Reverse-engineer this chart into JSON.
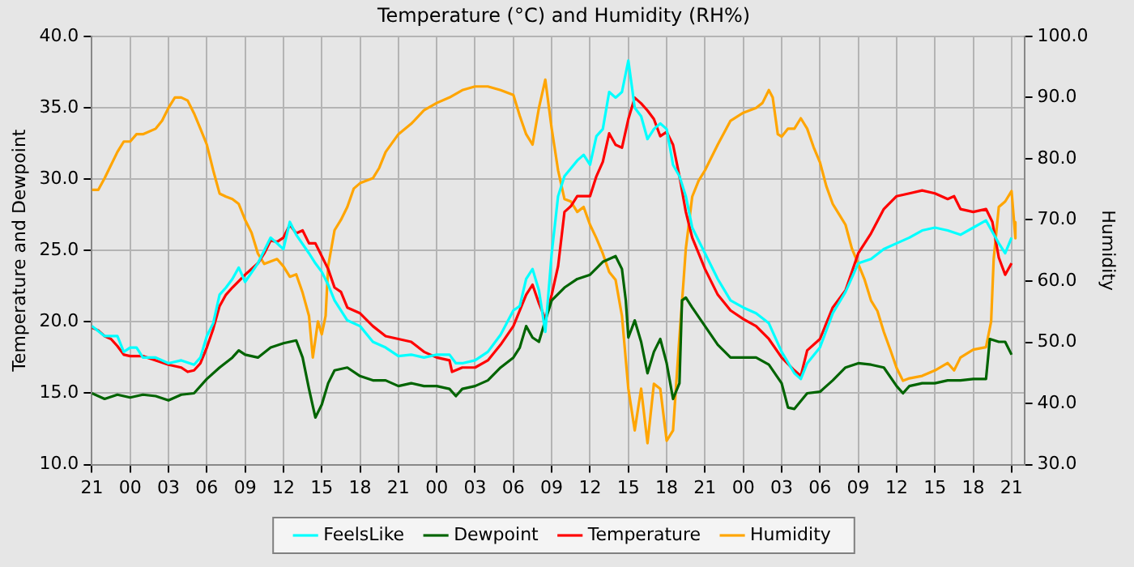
{
  "chart_data": {
    "type": "line",
    "title": "Temperature (°C) and Humidity (RH%)",
    "ylabel": "Temperature and Dewpoint",
    "y2label": "Humidity",
    "xlim": [
      "--01-01T21:00",
      "--01-04T22:00"
    ],
    "xticks": [
      {
        "value": "--01-01T21:00",
        "label": "21"
      },
      {
        "value": "--01-02T00:00",
        "label": "00"
      },
      {
        "value": "--01-02T03:00",
        "label": "03"
      },
      {
        "value": "--01-02T06:00",
        "label": "06"
      },
      {
        "value": "--01-02T09:00",
        "label": "09"
      },
      {
        "value": "--01-02T12:00",
        "label": "12"
      },
      {
        "value": "--01-02T15:00",
        "label": "15"
      },
      {
        "value": "--01-02T18:00",
        "label": "18"
      },
      {
        "value": "--01-02T21:00",
        "label": "21"
      },
      {
        "value": "--01-03T00:00",
        "label": "00"
      },
      {
        "value": "--01-03T03:00",
        "label": "03"
      },
      {
        "value": "--01-03T06:00",
        "label": "06"
      },
      {
        "value": "--01-03T09:00",
        "label": "09"
      },
      {
        "value": "--01-03T12:00",
        "label": "12"
      },
      {
        "value": "--01-03T15:00",
        "label": "15"
      },
      {
        "value": "--01-03T18:00",
        "label": "18"
      },
      {
        "value": "--01-03T21:00",
        "label": "21"
      },
      {
        "value": "--01-04T00:00",
        "label": "00"
      },
      {
        "value": "--01-04T03:00",
        "label": "03"
      },
      {
        "value": "--01-04T06:00",
        "label": "06"
      },
      {
        "value": "--01-04T09:00",
        "label": "09"
      },
      {
        "value": "--01-04T12:00",
        "label": "12"
      },
      {
        "value": "--01-04T15:00",
        "label": "15"
      },
      {
        "value": "--01-04T18:00",
        "label": "18"
      },
      {
        "value": "--01-04T21:00",
        "label": "21"
      }
    ],
    "ylim": [
      10,
      40
    ],
    "yticks": [
      {
        "value": 10,
        "label": "10.0"
      },
      {
        "value": 15,
        "label": "15.0"
      },
      {
        "value": 20,
        "label": "20.0"
      },
      {
        "value": 25,
        "label": "25.0"
      },
      {
        "value": 30,
        "label": "30.0"
      },
      {
        "value": 35,
        "label": "35.0"
      },
      {
        "value": 40,
        "label": "40.0"
      }
    ],
    "y2lim": [
      30,
      100
    ],
    "y2ticks": [
      {
        "value": 30,
        "label": "30.0"
      },
      {
        "value": 40,
        "label": "40.0"
      },
      {
        "value": 50,
        "label": "50.0"
      },
      {
        "value": 60,
        "label": "60.0"
      },
      {
        "value": 70,
        "label": "70.0"
      },
      {
        "value": 80,
        "label": "80.0"
      },
      {
        "value": 90,
        "label": "90.0"
      },
      {
        "value": 100,
        "label": "100.0"
      }
    ],
    "grid": true,
    "legend": "bottom",
    "marker": "none",
    "line_style": "solid",
    "series": [
      {
        "name": "FeelsLike",
        "color": "#00ffff",
        "x": [
          "--01-01T21:00",
          "--01-01T22:00",
          "--01-01T23:00",
          "--01-01T23:30",
          "--01-02T00:00",
          "--01-02T00:30",
          "--01-02T01:00",
          "--01-02T02:00",
          "--01-02T03:00",
          "--01-02T04:00",
          "--01-02T05:00",
          "--01-02T05:30",
          "--01-02T06:00",
          "--01-02T06:30",
          "--01-02T07:00",
          "--01-02T07:30",
          "--01-02T08:00",
          "--01-02T08:30",
          "--01-02T09:00",
          "--01-02T10:00",
          "--01-02T11:00",
          "--01-02T12:00",
          "--01-02T12:30",
          "--01-02T13:00",
          "--01-02T14:00",
          "--01-02T14:30",
          "--01-02T15:00",
          "--01-02T15:30",
          "--01-02T16:00",
          "--01-02T17:00",
          "--01-02T18:00",
          "--01-02T19:00",
          "--01-02T20:00",
          "--01-02T21:00",
          "--01-02T22:00",
          "--01-02T23:00",
          "--01-03T00:00",
          "--01-03T01:00",
          "--01-03T01:30",
          "--01-03T02:00",
          "--01-03T03:00",
          "--01-03T04:00",
          "--01-03T05:00",
          "--01-03T06:00",
          "--01-03T06:30",
          "--01-03T07:00",
          "--01-03T07:30",
          "--01-03T08:00",
          "--01-03T08:30",
          "--01-03T09:00",
          "--01-03T09:30",
          "--01-03T10:00",
          "--01-03T11:00",
          "--01-03T11:30",
          "--01-03T12:00",
          "--01-03T12:30",
          "--01-03T13:00",
          "--01-03T13:30",
          "--01-03T14:00",
          "--01-03T14:30",
          "--01-03T15:00",
          "--01-03T15:30",
          "--01-03T16:00",
          "--01-03T16:30",
          "--01-03T17:00",
          "--01-03T17:30",
          "--01-03T18:00",
          "--01-03T18:30",
          "--01-03T19:00",
          "--01-03T19:30",
          "--01-03T20:00",
          "--01-03T21:00",
          "--01-03T22:00",
          "--01-03T23:00",
          "--01-04T00:00",
          "--01-04T01:00",
          "--01-04T02:00",
          "--01-04T03:00",
          "--01-04T04:00",
          "--01-04T04:30",
          "--01-04T05:00",
          "--01-04T06:00",
          "--01-04T07:00",
          "--01-04T08:00",
          "--01-04T09:00",
          "--01-04T10:00",
          "--01-04T11:00",
          "--01-04T12:00",
          "--01-04T13:00",
          "--01-04T14:00",
          "--01-04T15:00",
          "--01-04T16:00",
          "--01-04T17:00",
          "--01-04T18:00",
          "--01-04T19:00",
          "--01-04T20:00",
          "--01-04T20:30",
          "--01-04T21:00"
        ],
        "values": [
          19.7,
          19.0,
          19.0,
          17.9,
          18.2,
          18.2,
          17.5,
          17.5,
          17.1,
          17.3,
          17.0,
          17.5,
          19.0,
          19.9,
          21.9,
          22.4,
          23.0,
          23.8,
          22.8,
          24.1,
          25.9,
          25.1,
          27.0,
          26.1,
          24.8,
          24.1,
          23.5,
          22.6,
          21.5,
          20.1,
          19.7,
          18.6,
          18.2,
          17.6,
          17.7,
          17.5,
          17.7,
          17.7,
          17.1,
          17.1,
          17.3,
          17.9,
          19.1,
          20.8,
          21.1,
          23.0,
          23.7,
          22.2,
          19.3,
          24.8,
          28.8,
          30.2,
          31.3,
          31.7,
          31.0,
          33.0,
          33.5,
          36.1,
          35.7,
          36.1,
          38.3,
          35.0,
          34.4,
          32.8,
          33.5,
          33.9,
          33.5,
          31.0,
          30.2,
          28.8,
          26.6,
          24.8,
          23.0,
          21.5,
          21.0,
          20.6,
          19.9,
          17.9,
          16.4,
          16.0,
          17.1,
          18.2,
          20.6,
          22.1,
          24.1,
          24.4,
          25.1,
          25.5,
          25.9,
          26.4,
          26.6,
          26.4,
          26.1,
          26.6,
          27.1,
          25.5,
          24.8,
          25.9
        ]
      },
      {
        "name": "Dewpoint",
        "color": "#006400",
        "x": [
          "--01-01T21:00",
          "--01-01T22:00",
          "--01-01T23:00",
          "--01-02T00:00",
          "--01-02T01:00",
          "--01-02T02:00",
          "--01-02T03:00",
          "--01-02T04:00",
          "--01-02T05:00",
          "--01-02T06:00",
          "--01-02T07:00",
          "--01-02T08:00",
          "--01-02T08:30",
          "--01-02T09:00",
          "--01-02T10:00",
          "--01-02T11:00",
          "--01-02T12:00",
          "--01-02T13:00",
          "--01-02T13:30",
          "--01-02T14:00",
          "--01-02T14:30",
          "--01-02T15:00",
          "--01-02T15:30",
          "--01-02T16:00",
          "--01-02T17:00",
          "--01-02T18:00",
          "--01-02T19:00",
          "--01-02T20:00",
          "--01-02T21:00",
          "--01-02T22:00",
          "--01-02T23:00",
          "--01-03T00:00",
          "--01-03T01:00",
          "--01-03T01:30",
          "--01-03T02:00",
          "--01-03T03:00",
          "--01-03T04:00",
          "--01-03T05:00",
          "--01-03T06:00",
          "--01-03T06:30",
          "--01-03T07:00",
          "--01-03T07:30",
          "--01-03T08:00",
          "--01-03T08:30",
          "--01-03T09:00",
          "--01-03T10:00",
          "--01-03T11:00",
          "--01-03T12:00",
          "--01-03T13:00",
          "--01-03T14:00",
          "--01-03T14:30",
          "--01-03T14:48",
          "--01-03T15:00",
          "--01-03T15:30",
          "--01-03T16:00",
          "--01-03T16:30",
          "--01-03T17:00",
          "--01-03T17:30",
          "--01-03T18:00",
          "--01-03T18:30",
          "--01-03T19:00",
          "--01-03T19:12",
          "--01-03T19:30",
          "--01-03T20:00",
          "--01-03T21:00",
          "--01-03T22:00",
          "--01-03T23:00",
          "--01-04T00:00",
          "--01-04T01:00",
          "--01-04T02:00",
          "--01-04T03:00",
          "--01-04T03:30",
          "--01-04T04:00",
          "--01-04T05:00",
          "--01-04T06:00",
          "--01-04T07:00",
          "--01-04T08:00",
          "--01-04T09:00",
          "--01-04T10:00",
          "--01-04T11:00",
          "--01-04T12:00",
          "--01-04T12:30",
          "--01-04T13:00",
          "--01-04T14:00",
          "--01-04T15:00",
          "--01-04T16:00",
          "--01-04T17:00",
          "--01-04T18:00",
          "--01-04T19:00",
          "--01-04T19:18",
          "--01-04T20:00",
          "--01-04T20:30",
          "--01-04T21:00"
        ],
        "values": [
          15.0,
          14.6,
          14.9,
          14.7,
          14.9,
          14.8,
          14.5,
          14.9,
          15.0,
          16.0,
          16.8,
          17.5,
          18.0,
          17.7,
          17.5,
          18.2,
          18.5,
          18.7,
          17.5,
          15.3,
          13.3,
          14.2,
          15.7,
          16.6,
          16.8,
          16.2,
          15.9,
          15.9,
          15.5,
          15.7,
          15.5,
          15.5,
          15.3,
          14.8,
          15.3,
          15.5,
          15.9,
          16.8,
          17.5,
          18.2,
          19.7,
          18.9,
          18.6,
          20.1,
          21.5,
          22.4,
          23.0,
          23.3,
          24.2,
          24.6,
          23.7,
          21.5,
          18.9,
          20.1,
          18.6,
          16.4,
          17.9,
          18.8,
          17.1,
          14.6,
          15.7,
          21.5,
          21.7,
          21.0,
          19.7,
          18.4,
          17.5,
          17.5,
          17.5,
          17.0,
          15.7,
          14.0,
          13.9,
          15.0,
          15.1,
          15.9,
          16.8,
          17.1,
          17.0,
          16.8,
          15.5,
          15.0,
          15.5,
          15.7,
          15.7,
          15.9,
          15.9,
          16.0,
          16.0,
          18.8,
          18.6,
          18.6,
          17.7
        ]
      },
      {
        "name": "Temperature",
        "color": "#ff0000",
        "x": [
          "--01-01T21:00",
          "--01-01T21:30",
          "--01-01T22:00",
          "--01-01T22:30",
          "--01-01T23:00",
          "--01-01T23:30",
          "--01-02T00:00",
          "--01-02T01:00",
          "--01-02T02:00",
          "--01-02T03:00",
          "--01-02T04:00",
          "--01-02T04:30",
          "--01-02T05:00",
          "--01-02T05:30",
          "--01-02T06:00",
          "--01-02T06:30",
          "--01-02T07:00",
          "--01-02T07:30",
          "--01-02T08:00",
          "--01-02T09:00",
          "--01-02T10:00",
          "--01-02T10:30",
          "--01-02T11:00",
          "--01-02T11:30",
          "--01-02T12:00",
          "--01-02T12:30",
          "--01-02T13:00",
          "--01-02T13:30",
          "--01-02T14:00",
          "--01-02T14:30",
          "--01-02T15:00",
          "--01-02T15:30",
          "--01-02T16:00",
          "--01-02T16:30",
          "--01-02T17:00",
          "--01-02T18:00",
          "--01-02T19:00",
          "--01-02T20:00",
          "--01-02T21:00",
          "--01-02T22:00",
          "--01-02T23:00",
          "--01-03T00:00",
          "--01-03T01:00",
          "--01-03T01:12",
          "--01-03T02:00",
          "--01-03T03:00",
          "--01-03T04:00",
          "--01-03T05:00",
          "--01-03T06:00",
          "--01-03T07:00",
          "--01-03T07:30",
          "--01-03T08:00",
          "--01-03T08:30",
          "--01-03T09:00",
          "--01-03T09:30",
          "--01-03T10:00",
          "--01-03T10:30",
          "--01-03T11:00",
          "--01-03T12:00",
          "--01-03T12:30",
          "--01-03T13:00",
          "--01-03T13:30",
          "--01-03T14:00",
          "--01-03T14:30",
          "--01-03T15:00",
          "--01-03T15:30",
          "--01-03T16:00",
          "--01-03T16:30",
          "--01-03T17:00",
          "--01-03T17:30",
          "--01-03T18:00",
          "--01-03T18:30",
          "--01-03T19:00",
          "--01-03T19:30",
          "--01-03T20:00",
          "--01-03T20:30",
          "--01-03T21:00",
          "--01-03T22:00",
          "--01-03T23:00",
          "--01-04T00:00",
          "--01-04T01:00",
          "--01-04T02:00",
          "--01-04T03:00",
          "--01-04T04:00",
          "--01-04T04:30",
          "--01-04T05:00",
          "--01-04T06:00",
          "--01-04T07:00",
          "--01-04T08:00",
          "--01-04T09:00",
          "--01-04T10:00",
          "--01-04T11:00",
          "--01-04T12:00",
          "--01-04T13:00",
          "--01-04T14:00",
          "--01-04T15:00",
          "--01-04T16:00",
          "--01-04T16:30",
          "--01-04T17:00",
          "--01-04T18:00",
          "--01-04T19:00",
          "--01-04T19:30",
          "--01-04T20:00",
          "--01-04T20:30",
          "--01-04T21:00"
        ],
        "values": [
          19.6,
          19.4,
          19.0,
          18.8,
          18.3,
          17.7,
          17.6,
          17.6,
          17.3,
          17.0,
          16.8,
          16.5,
          16.6,
          17.1,
          18.2,
          19.5,
          21.1,
          21.9,
          22.4,
          23.3,
          24.1,
          24.8,
          25.7,
          25.6,
          25.9,
          26.8,
          26.2,
          26.4,
          25.5,
          25.5,
          24.6,
          23.7,
          22.4,
          22.1,
          21.0,
          20.6,
          19.7,
          19.0,
          18.8,
          18.6,
          17.9,
          17.5,
          17.3,
          16.5,
          16.8,
          16.8,
          17.3,
          18.4,
          19.7,
          21.9,
          22.6,
          21.3,
          20.2,
          21.9,
          23.9,
          27.7,
          28.1,
          28.8,
          28.8,
          30.2,
          31.2,
          33.2,
          32.4,
          32.2,
          34.2,
          35.7,
          35.3,
          34.8,
          34.2,
          33.0,
          33.3,
          32.4,
          30.2,
          27.7,
          25.9,
          24.8,
          23.7,
          21.9,
          20.8,
          20.2,
          19.7,
          18.8,
          17.5,
          16.6,
          16.2,
          18.0,
          18.8,
          21.0,
          22.2,
          24.8,
          26.2,
          27.9,
          28.8,
          29.0,
          29.2,
          29.0,
          28.6,
          28.8,
          27.9,
          27.7,
          27.9,
          27.0,
          24.5,
          23.3,
          24.1
        ]
      },
      {
        "name": "Humidity",
        "color": "#ffa500",
        "axis": "y2",
        "x": [
          "--01-01T21:00",
          "--01-01T21:30",
          "--01-01T22:00",
          "--01-01T23:00",
          "--01-01T23:30",
          "--01-02T00:00",
          "--01-02T00:30",
          "--01-02T01:00",
          "--01-02T02:00",
          "--01-02T02:30",
          "--01-02T03:00",
          "--01-02T03:30",
          "--01-02T04:00",
          "--01-02T04:30",
          "--01-02T05:00",
          "--01-02T05:30",
          "--01-02T06:00",
          "--01-02T06:30",
          "--01-02T07:00",
          "--01-02T07:30",
          "--01-02T08:00",
          "--01-02T08:30",
          "--01-02T09:00",
          "--01-02T09:30",
          "--01-02T10:00",
          "--01-02T10:30",
          "--01-02T11:00",
          "--01-02T11:30",
          "--01-02T12:00",
          "--01-02T12:30",
          "--01-02T13:00",
          "--01-02T13:30",
          "--01-02T14:00",
          "--01-02T14:18",
          "--01-02T14:42",
          "--01-02T15:00",
          "--01-02T15:18",
          "--01-02T15:30",
          "--01-02T16:00",
          "--01-02T16:30",
          "--01-02T17:00",
          "--01-02T17:30",
          "--01-02T18:00",
          "--01-02T19:00",
          "--01-02T19:30",
          "--01-02T20:00",
          "--01-02T21:00",
          "--01-02T22:00",
          "--01-02T23:00",
          "--01-03T00:00",
          "--01-03T01:00",
          "--01-03T02:00",
          "--01-03T03:00",
          "--01-03T04:00",
          "--01-03T05:00",
          "--01-03T06:00",
          "--01-03T06:30",
          "--01-03T07:00",
          "--01-03T07:30",
          "--01-03T08:00",
          "--01-03T08:30",
          "--01-03T09:00",
          "--01-03T09:30",
          "--01-03T10:00",
          "--01-03T10:30",
          "--01-03T11:00",
          "--01-03T11:30",
          "--01-03T12:00",
          "--01-03T12:30",
          "--01-03T13:00",
          "--01-03T13:30",
          "--01-03T14:00",
          "--01-03T14:30",
          "--01-03T15:00",
          "--01-03T15:30",
          "--01-03T16:00",
          "--01-03T16:30",
          "--01-03T17:00",
          "--01-03T17:30",
          "--01-03T18:00",
          "--01-03T18:30",
          "--01-03T19:00",
          "--01-03T19:18",
          "--01-03T19:30",
          "--01-03T20:00",
          "--01-03T20:30",
          "--01-03T21:00",
          "--01-03T22:00",
          "--01-03T23:00",
          "--01-04T00:00",
          "--01-04T01:00",
          "--01-04T01:30",
          "--01-04T02:00",
          "--01-04T02:18",
          "--01-04T02:42",
          "--01-04T03:00",
          "--01-04T03:30",
          "--01-04T04:00",
          "--01-04T04:30",
          "--01-04T05:00",
          "--01-04T05:30",
          "--01-04T06:00",
          "--01-04T06:30",
          "--01-04T07:00",
          "--01-04T07:30",
          "--01-04T08:00",
          "--01-04T08:30",
          "--01-04T09:00",
          "--01-04T09:30",
          "--01-04T10:00",
          "--01-04T10:30",
          "--01-04T11:00",
          "--01-04T11:30",
          "--01-04T12:00",
          "--01-04T12:30",
          "--01-04T13:00",
          "--01-04T14:00",
          "--01-04T15:00",
          "--01-04T16:00",
          "--01-04T16:30",
          "--01-04T17:00",
          "--01-04T18:00",
          "--01-04T19:00",
          "--01-04T19:24",
          "--01-04T19:36",
          "--01-04T20:00",
          "--01-04T20:30",
          "--01-04T21:00",
          "--01-04T21:12",
          "--01-04T21:18"
        ],
        "values": [
          74.9,
          74.9,
          76.8,
          81.1,
          82.8,
          82.8,
          84.0,
          84.0,
          84.9,
          86.2,
          88.3,
          90.0,
          90.0,
          89.5,
          87.4,
          84.9,
          82.3,
          78.1,
          74.3,
          73.8,
          73.4,
          72.6,
          70.0,
          67.9,
          64.5,
          62.8,
          63.2,
          63.6,
          62.4,
          60.7,
          61.1,
          58.1,
          54.3,
          47.5,
          53.4,
          51.3,
          54.3,
          62.4,
          68.3,
          70.0,
          72.1,
          75.1,
          76.0,
          76.8,
          78.5,
          81.1,
          84.0,
          85.7,
          87.9,
          89.1,
          90.0,
          91.2,
          91.8,
          91.8,
          91.2,
          90.4,
          87.0,
          84.0,
          82.3,
          88.3,
          92.9,
          84.9,
          78.1,
          73.4,
          73.0,
          71.3,
          72.1,
          69.2,
          67.0,
          64.5,
          61.5,
          60.2,
          54.3,
          42.4,
          35.6,
          42.4,
          33.5,
          43.2,
          42.4,
          33.9,
          35.6,
          50.9,
          59.4,
          65.3,
          73.8,
          76.4,
          78.1,
          82.3,
          86.2,
          87.5,
          88.3,
          89.1,
          91.2,
          90.0,
          84.0,
          83.6,
          84.9,
          84.9,
          86.6,
          84.9,
          81.9,
          79.4,
          75.5,
          72.6,
          70.9,
          69.2,
          65.3,
          62.8,
          60.2,
          56.8,
          55.1,
          51.7,
          48.8,
          45.8,
          43.7,
          44.1,
          44.5,
          45.4,
          46.6,
          45.4,
          47.5,
          48.8,
          49.2,
          53.4,
          63.6,
          72.1,
          73.0,
          74.7,
          69.6,
          67.0
        ]
      }
    ]
  }
}
